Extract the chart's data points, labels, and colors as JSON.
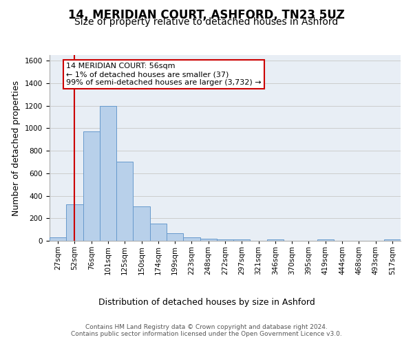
{
  "title": "14, MERIDIAN COURT, ASHFORD, TN23 5UZ",
  "subtitle": "Size of property relative to detached houses in Ashford",
  "xlabel": "Distribution of detached houses by size in Ashford",
  "ylabel": "Number of detached properties",
  "bar_values": [
    30,
    325,
    970,
    1200,
    700,
    305,
    155,
    70,
    30,
    20,
    15,
    15,
    0,
    10,
    0,
    0,
    10,
    0,
    0,
    0,
    10
  ],
  "bar_labels": [
    "27sqm",
    "52sqm",
    "76sqm",
    "101sqm",
    "125sqm",
    "150sqm",
    "174sqm",
    "199sqm",
    "223sqm",
    "248sqm",
    "272sqm",
    "297sqm",
    "321sqm",
    "346sqm",
    "370sqm",
    "395sqm",
    "419sqm",
    "444sqm",
    "468sqm",
    "493sqm",
    "517sqm"
  ],
  "bar_color": "#b8d0ea",
  "bar_edge_color": "#6699cc",
  "annotation_box_text": "14 MERIDIAN COURT: 56sqm\n← 1% of detached houses are smaller (37)\n99% of semi-detached houses are larger (3,732) →",
  "annotation_box_color": "#ffffff",
  "annotation_box_edge_color": "#cc0000",
  "vline_x": 1.0,
  "vline_color": "#cc0000",
  "ylim": [
    0,
    1650
  ],
  "yticks": [
    0,
    200,
    400,
    600,
    800,
    1000,
    1200,
    1400,
    1600
  ],
  "grid_color": "#cccccc",
  "bg_color": "#e8eef5",
  "footer_text": "Contains HM Land Registry data © Crown copyright and database right 2024.\nContains public sector information licensed under the Open Government Licence v3.0.",
  "title_fontsize": 12,
  "subtitle_fontsize": 10,
  "xlabel_fontsize": 9,
  "ylabel_fontsize": 9,
  "tick_fontsize": 7.5,
  "ann_fontsize": 8
}
